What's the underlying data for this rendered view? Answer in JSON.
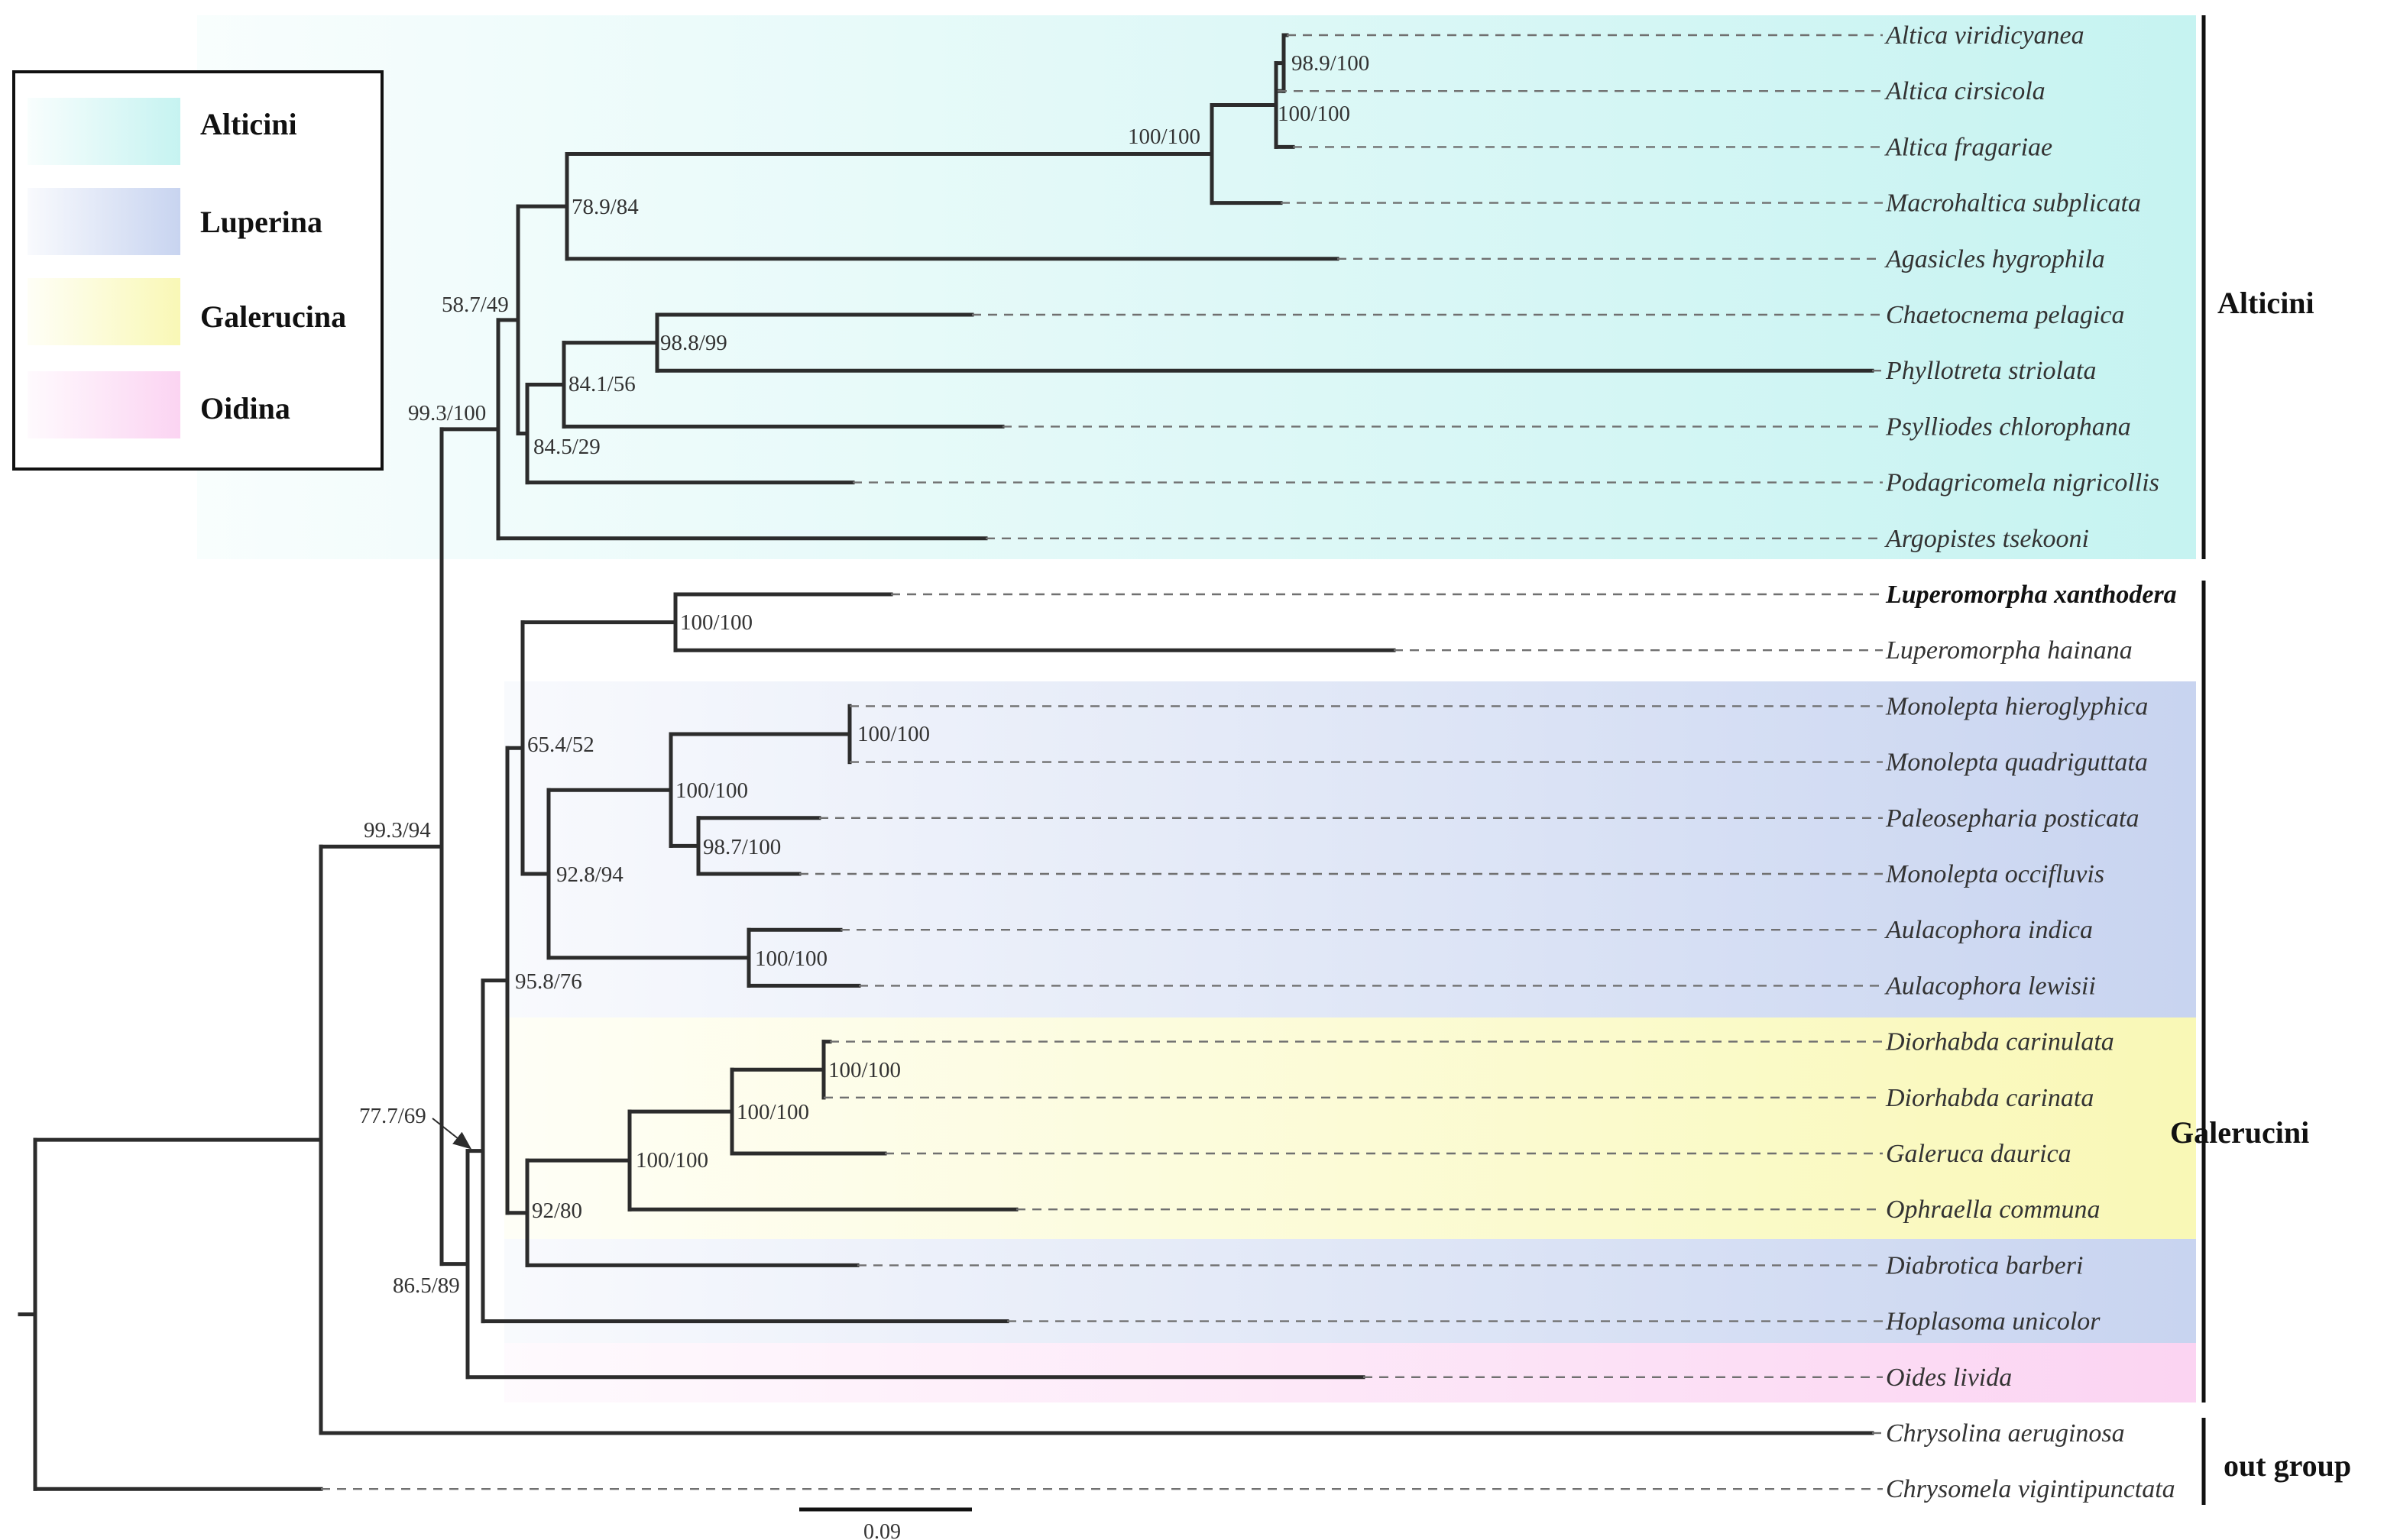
{
  "figure": {
    "type": "phylogenetic-tree",
    "colors": {
      "alticini": "#c6f3f1",
      "luperina": "#c8d4f0",
      "galerucina": "#f9f8b6",
      "oidina": "#fbd4f2",
      "branch": "#2c2c2c"
    }
  },
  "legend": {
    "items": [
      {
        "label": "Alticini",
        "key": "alticini"
      },
      {
        "label": "Luperina",
        "key": "luperina"
      },
      {
        "label": "Galerucina",
        "key": "galerucina"
      },
      {
        "label": "Oidina",
        "key": "oidina"
      }
    ]
  },
  "taxa": [
    {
      "name": "Altica viridicyanea",
      "bold": false
    },
    {
      "name": "Altica cirsicola",
      "bold": false
    },
    {
      "name": "Altica fragariae",
      "bold": false
    },
    {
      "name": "Macrohaltica subplicata",
      "bold": false
    },
    {
      "name": "Agasicles hygrophila",
      "bold": false
    },
    {
      "name": "Chaetocnema pelagica",
      "bold": false
    },
    {
      "name": "Phyllotreta striolata",
      "bold": false
    },
    {
      "name": "Psylliodes chlorophana",
      "bold": false
    },
    {
      "name": "Podagricomela nigricollis",
      "bold": false
    },
    {
      "name": "Argopistes tsekooni",
      "bold": false
    },
    {
      "name": "Luperomorpha xanthodera",
      "bold": true
    },
    {
      "name": "Luperomorpha hainana",
      "bold": false
    },
    {
      "name": "Monolepta hieroglyphica",
      "bold": false
    },
    {
      "name": "Monolepta quadriguttata",
      "bold": false
    },
    {
      "name": "Paleosepharia posticata",
      "bold": false
    },
    {
      "name": "Monolepta occifluvis",
      "bold": false
    },
    {
      "name": "Aulacophora indica",
      "bold": false
    },
    {
      "name": "Aulacophora lewisii",
      "bold": false
    },
    {
      "name": "Diorhabda carinulata",
      "bold": false
    },
    {
      "name": "Diorhabda carinata",
      "bold": false
    },
    {
      "name": "Galeruca daurica",
      "bold": false
    },
    {
      "name": "Ophraella communa",
      "bold": false
    },
    {
      "name": "Diabrotica barberi",
      "bold": false
    },
    {
      "name": "Hoplasoma unicolor",
      "bold": false
    },
    {
      "name": "Oides livida",
      "bold": false
    },
    {
      "name": "Chrysolina aeruginosa",
      "bold": false
    },
    {
      "name": "Chrysomela vigintipunctata",
      "bold": false
    }
  ],
  "support_values": [
    "98.9/100",
    "100/100",
    "100/100",
    "78.9/84",
    "58.7/49",
    "98.8/99",
    "84.1/56",
    "84.5/29",
    "99.3/100",
    "100/100",
    "100/100",
    "100/100",
    "98.7/100",
    "100/100",
    "65.4/52",
    "92.8/94",
    "100/100",
    "100/100",
    "100/100",
    "92/80",
    "95.8/76",
    "86.5/89",
    "77.7/69",
    "99.3/94"
  ],
  "groups": [
    {
      "label": "Alticini"
    },
    {
      "label": "Galerucini"
    },
    {
      "label": "out group"
    }
  ],
  "scale_bar": {
    "label": "0.09"
  }
}
